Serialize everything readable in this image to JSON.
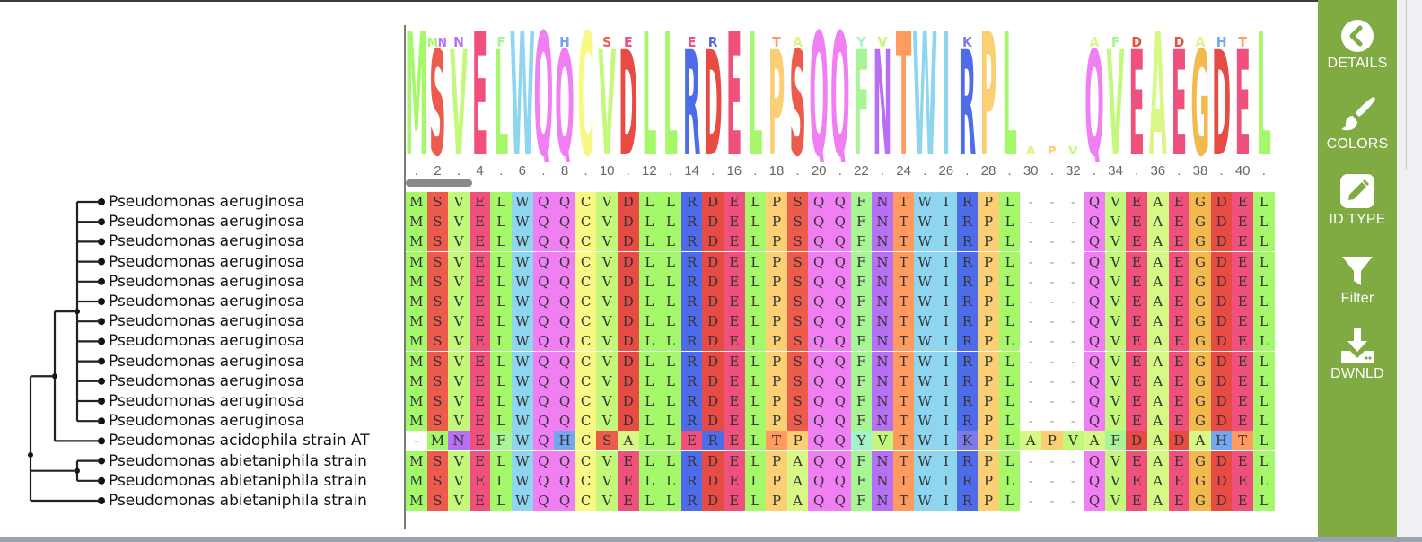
{
  "colors": {
    "sidebar": "#80aa42",
    "aa": {
      "M": "#a5f86a",
      "S": "#ec5b4c",
      "V": "#c3f87a",
      "E": "#f0507c",
      "L": "#a5f86a",
      "W": "#8ed6f0",
      "Q": "#f17ff4",
      "C": "#f8f884",
      "D": "#e84a44",
      "R": "#4e6cea",
      "P": "#fbcf73",
      "F": "#a7f594",
      "N": "#b76ff4",
      "T": "#ff9b5e",
      "I": "#8ed6f0",
      "A": "#d7f884",
      "G": "#f4b94e",
      "H": "#73a8f0",
      "Y": "#a5f3c8",
      "K": "#7e7be8",
      "-": "#ffffff"
    }
  },
  "sidebar": {
    "buttons": [
      {
        "label": "DETAILS",
        "icon": "chevron-left-icon"
      },
      {
        "label": "COLORS",
        "icon": "paintbrush-icon"
      },
      {
        "label": "ID TYPE",
        "icon": "pencil-icon"
      },
      {
        "label": "Filter",
        "icon": "filter-icon"
      },
      {
        "label": "DWNLD",
        "icon": "download-icon"
      }
    ]
  },
  "ruler": {
    "labels": [
      ".",
      "2",
      ".",
      "4",
      ".",
      "6",
      ".",
      "8",
      ".",
      "10",
      ".",
      "12",
      ".",
      "14",
      ".",
      "16",
      ".",
      "18",
      ".",
      "20",
      ".",
      "22",
      ".",
      "24",
      ".",
      "26",
      ".",
      "28",
      ".",
      "30",
      ".",
      "32",
      ".",
      "34",
      ".",
      "36",
      ".",
      "38",
      ".",
      "40",
      "."
    ]
  },
  "tree": {
    "leaves": [
      "Pseudomonas aeruginosa",
      "Pseudomonas aeruginosa",
      "Pseudomonas aeruginosa",
      "Pseudomonas aeruginosa",
      "Pseudomonas aeruginosa",
      "Pseudomonas aeruginosa",
      "Pseudomonas aeruginosa",
      "Pseudomonas aeruginosa",
      "Pseudomonas aeruginosa",
      "Pseudomonas aeruginosa",
      "Pseudomonas aeruginosa",
      "Pseudomonas aeruginosa",
      "Pseudomonas acidophila strain AT",
      "Pseudomonas abietaniphila strain",
      "Pseudomonas abietaniphila strain",
      "Pseudomonas abietaniphila strain"
    ]
  },
  "alignment": {
    "sequences": [
      "MSVELWQQCVDLLRDELPSQQFNTWIRPL---QVEAEGDEL",
      "MSVELWQQCVDLLRDELPSQQFNTWIRPL---QVEAEGDEL",
      "MSVELWQQCVDLLRDELPSQQFNTWIRPL---QVEAEGDEL",
      "MSVELWQQCVDLLRDELPSQQFNTWIRPL---QVEAEGDEL",
      "MSVELWQQCVDLLRDELPSQQFNTWIRPL---QVEAEGDEL",
      "MSVELWQQCVDLLRDELPSQQFNTWIRPL---QVEAEGDEL",
      "MSVELWQQCVDLLRDELPSQQFNTWIRPL---QVEAEGDEL",
      "MSVELWQQCVDLLRDELPSQQFNTWIRPL---QVEAEGDEL",
      "MSVELWQQCVDLLRDELPSQQFNTWIRPL---QVEAEGDEL",
      "MSVELWQQCVDLLRDELPSQQFNTWIRPL---QVEAEGDEL",
      "MSVELWQQCVDLLRDELPSQQFNTWIRPL---QVEAEGDEL",
      "MSVELWQQCVDLLRDELPSQQFNTWIRPL---QVEAEGDEL",
      "-MNEFWQHCSALLERELTPQQYVTWIKPLAPVAFDADAHTL",
      "MSVELWQQCVELLRDELPAQQFNTWIRPL---QVEAEGDEL",
      "MSVELWQQCVELLRDELPAQQFNTWIRPL---QVEAEGDEL",
      "MSVELWQQCVELLRDELPAQQFNTWIRPL---QVEAEGDEL"
    ]
  },
  "logo": {
    "columns": [
      {
        "main": "M",
        "minor": ""
      },
      {
        "main": "S",
        "minor": "MN"
      },
      {
        "main": "V",
        "minor": "N"
      },
      {
        "main": "E",
        "minor": ""
      },
      {
        "main": "L",
        "minor": "F"
      },
      {
        "main": "W",
        "minor": ""
      },
      {
        "main": "Q",
        "minor": ""
      },
      {
        "main": "Q",
        "minor": "H"
      },
      {
        "main": "C",
        "minor": ""
      },
      {
        "main": "V",
        "minor": "S"
      },
      {
        "main": "D",
        "minor": "E"
      },
      {
        "main": "L",
        "minor": ""
      },
      {
        "main": "L",
        "minor": ""
      },
      {
        "main": "R",
        "minor": "E"
      },
      {
        "main": "D",
        "minor": "R"
      },
      {
        "main": "E",
        "minor": ""
      },
      {
        "main": "L",
        "minor": ""
      },
      {
        "main": "P",
        "minor": "T"
      },
      {
        "main": "S",
        "minor": "A"
      },
      {
        "main": "Q",
        "minor": ""
      },
      {
        "main": "Q",
        "minor": ""
      },
      {
        "main": "F",
        "minor": "Y"
      },
      {
        "main": "N",
        "minor": "V"
      },
      {
        "main": "T",
        "minor": ""
      },
      {
        "main": "W",
        "minor": ""
      },
      {
        "main": "I",
        "minor": ""
      },
      {
        "main": "R",
        "minor": "K"
      },
      {
        "main": "P",
        "minor": ""
      },
      {
        "main": "L",
        "minor": ""
      },
      {
        "main": "",
        "minor": "A"
      },
      {
        "main": "",
        "minor": "P"
      },
      {
        "main": "",
        "minor": "V"
      },
      {
        "main": "Q",
        "minor": "A"
      },
      {
        "main": "V",
        "minor": "F"
      },
      {
        "main": "E",
        "minor": "D"
      },
      {
        "main": "A",
        "minor": ""
      },
      {
        "main": "E",
        "minor": "D"
      },
      {
        "main": "G",
        "minor": "A"
      },
      {
        "main": "D",
        "minor": "H"
      },
      {
        "main": "E",
        "minor": "T"
      },
      {
        "main": "L",
        "minor": ""
      }
    ]
  }
}
